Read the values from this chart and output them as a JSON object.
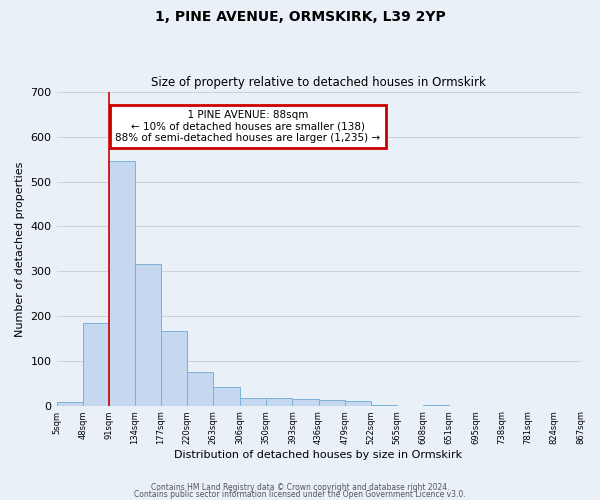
{
  "title": "1, PINE AVENUE, ORMSKIRK, L39 2YP",
  "subtitle": "Size of property relative to detached houses in Ormskirk",
  "xlabel": "Distribution of detached houses by size in Ormskirk",
  "ylabel": "Number of detached properties",
  "bin_edges": [
    5,
    48,
    91,
    134,
    177,
    220,
    263,
    306,
    350,
    393,
    436,
    479,
    522,
    565,
    608,
    651,
    695,
    738,
    781,
    824,
    867
  ],
  "bar_heights": [
    8,
    185,
    547,
    316,
    167,
    75,
    42,
    18,
    17,
    15,
    12,
    10,
    2,
    0,
    2,
    0,
    0,
    0,
    0,
    0
  ],
  "bar_color": "#c5d8f0",
  "bar_edgecolor": "#7ab0d8",
  "ylim": [
    0,
    700
  ],
  "yticks": [
    0,
    100,
    200,
    300,
    400,
    500,
    600,
    700
  ],
  "redline_x": 91,
  "annotation_title": "1 PINE AVENUE: 88sqm",
  "annotation_line1": "← 10% of detached houses are smaller (138)",
  "annotation_line2": "88% of semi-detached houses are larger (1,235) →",
  "annotation_box_color": "#ffffff",
  "annotation_box_edgecolor": "#cc0000",
  "redline_color": "#cc0000",
  "bg_color": "#eaf0f8",
  "footer1": "Contains HM Land Registry data © Crown copyright and database right 2024.",
  "footer2": "Contains public sector information licensed under the Open Government Licence v3.0."
}
